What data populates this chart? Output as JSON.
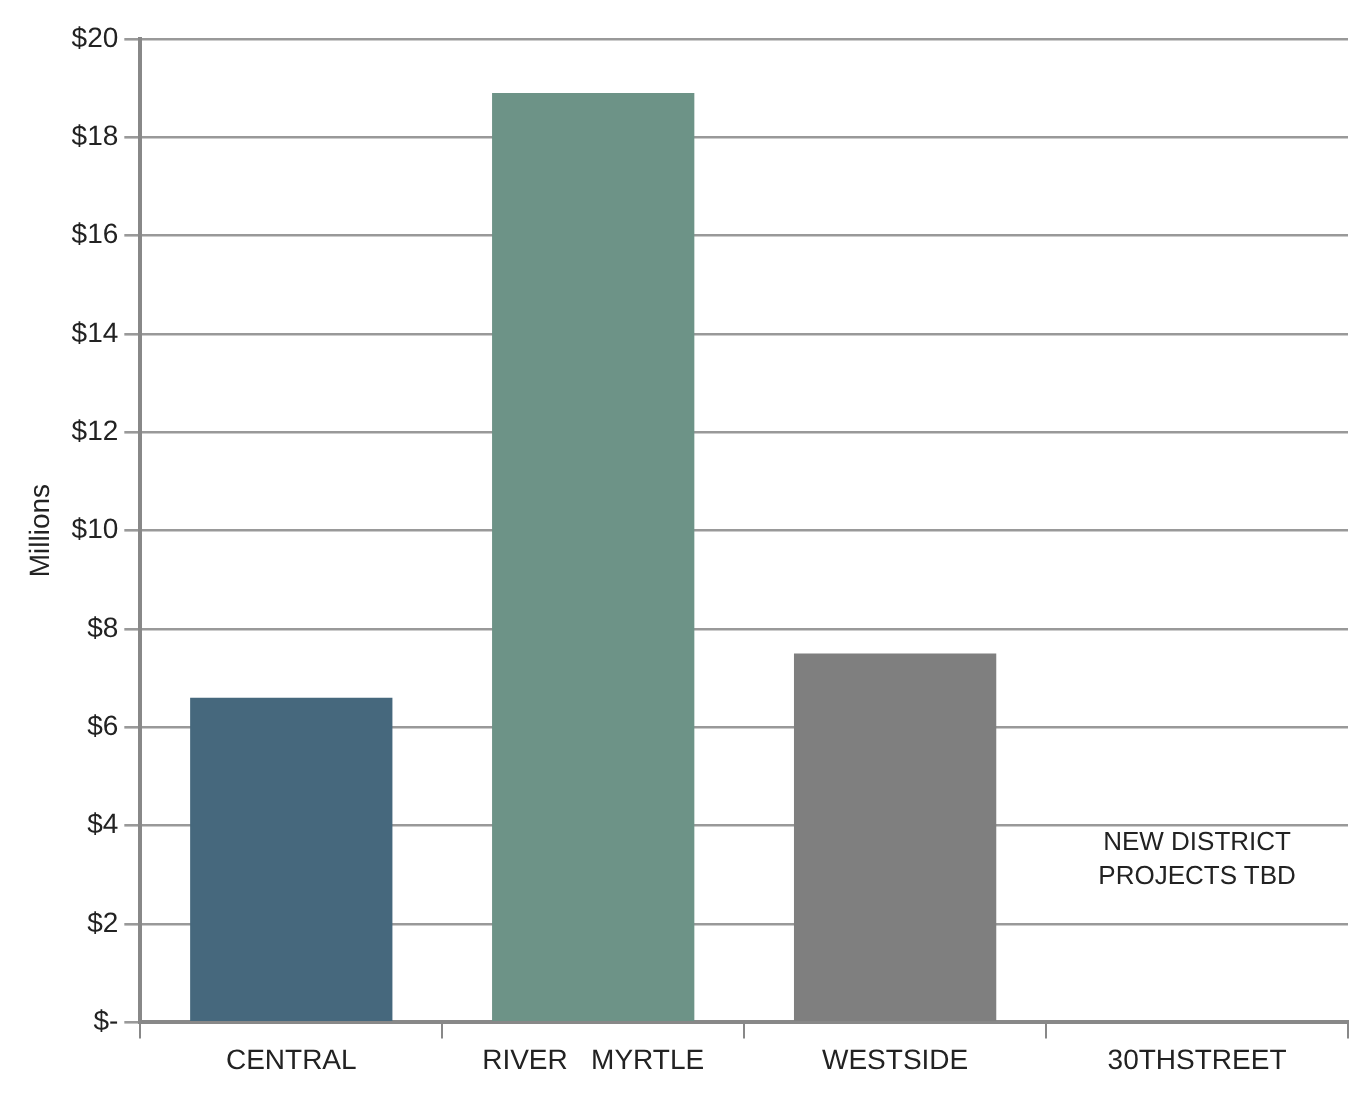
{
  "chart_data": {
    "type": "bar",
    "ylabel": "Millions",
    "categories": [
      "CENTRAL",
      "RIVER   MYRTLE",
      "WESTSIDE",
      "30THSTREET"
    ],
    "values": [
      6.6,
      18.9,
      7.5,
      null
    ],
    "colors": [
      "#46687d",
      "#6d9387",
      "#7f7f7f",
      "#7f7f7f"
    ],
    "ylim": [
      0,
      20
    ],
    "yticks": [
      {
        "value": 0,
        "label": "$-"
      },
      {
        "value": 2,
        "label": "$2"
      },
      {
        "value": 4,
        "label": "$4"
      },
      {
        "value": 6,
        "label": "$6"
      },
      {
        "value": 8,
        "label": "$8"
      },
      {
        "value": 10,
        "label": "$10"
      },
      {
        "value": 12,
        "label": "$12"
      },
      {
        "value": 14,
        "label": "$14"
      },
      {
        "value": 16,
        "label": "$16"
      },
      {
        "value": 18,
        "label": "$18"
      },
      {
        "value": 20,
        "label": "$20"
      }
    ],
    "grid": "y",
    "legend": false,
    "annotations": [
      "NEW DISTRICT\nPROJECTS TBD"
    ]
  }
}
